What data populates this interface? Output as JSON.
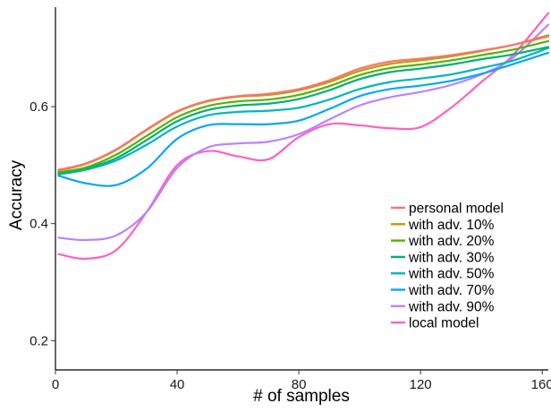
{
  "chart_data": {
    "type": "line",
    "title": "",
    "xlabel": "# of samples",
    "ylabel": "Accuracy",
    "xlim": [
      0,
      162
    ],
    "ylim": [
      0.15,
      0.77
    ],
    "xticks": [
      0,
      40,
      80,
      120,
      160
    ],
    "yticks": [
      0.2,
      0.4,
      0.6
    ],
    "xtick_labels": [
      "0",
      "40",
      "80",
      "120",
      "160"
    ],
    "ytick_labels": [
      "0.2",
      "0.4",
      "0.6"
    ],
    "grid": false,
    "legend_position": "bottom-right",
    "x": [
      1,
      10,
      20,
      30,
      40,
      50,
      60,
      70,
      80,
      90,
      100,
      110,
      120,
      130,
      140,
      150,
      162
    ],
    "series": [
      {
        "name": "personal model",
        "color": "#F8766D",
        "values": [
          0.492,
          0.503,
          0.527,
          0.561,
          0.592,
          0.61,
          0.618,
          0.622,
          0.63,
          0.645,
          0.665,
          0.677,
          0.682,
          0.688,
          0.696,
          0.705,
          0.72
        ]
      },
      {
        "name": "with adv. 10%",
        "color": "#C49A00",
        "values": [
          0.491,
          0.502,
          0.526,
          0.56,
          0.591,
          0.609,
          0.617,
          0.62,
          0.628,
          0.642,
          0.661,
          0.673,
          0.679,
          0.686,
          0.695,
          0.705,
          0.722
        ]
      },
      {
        "name": "with adv. 20%",
        "color": "#53B400",
        "values": [
          0.488,
          0.496,
          0.518,
          0.55,
          0.582,
          0.601,
          0.609,
          0.612,
          0.62,
          0.635,
          0.654,
          0.666,
          0.672,
          0.679,
          0.688,
          0.697,
          0.712
        ]
      },
      {
        "name": "with adv. 30%",
        "color": "#00B06F",
        "values": [
          0.486,
          0.494,
          0.512,
          0.543,
          0.575,
          0.594,
          0.602,
          0.605,
          0.613,
          0.628,
          0.647,
          0.659,
          0.665,
          0.672,
          0.681,
          0.689,
          0.702
        ]
      },
      {
        "name": "with adv. 50%",
        "color": "#00B6C0",
        "values": [
          0.484,
          0.492,
          0.508,
          0.535,
          0.566,
          0.585,
          0.591,
          0.593,
          0.598,
          0.612,
          0.63,
          0.642,
          0.648,
          0.655,
          0.666,
          0.678,
          0.7
        ]
      },
      {
        "name": "with adv. 70%",
        "color": "#06A4FF",
        "values": [
          0.482,
          0.469,
          0.466,
          0.494,
          0.545,
          0.568,
          0.57,
          0.57,
          0.576,
          0.596,
          0.618,
          0.63,
          0.636,
          0.644,
          0.656,
          0.672,
          0.692
        ]
      },
      {
        "name": "with adv. 90%",
        "color": "#B983FF",
        "values": [
          0.376,
          0.372,
          0.38,
          0.42,
          0.495,
          0.53,
          0.537,
          0.54,
          0.553,
          0.578,
          0.602,
          0.616,
          0.625,
          0.637,
          0.655,
          0.682,
          0.74
        ]
      },
      {
        "name": "local model",
        "color": "#FF61C3",
        "values": [
          0.348,
          0.34,
          0.355,
          0.42,
          0.5,
          0.524,
          0.515,
          0.51,
          0.548,
          0.57,
          0.568,
          0.563,
          0.565,
          0.598,
          0.642,
          0.686,
          0.76
        ]
      }
    ]
  }
}
